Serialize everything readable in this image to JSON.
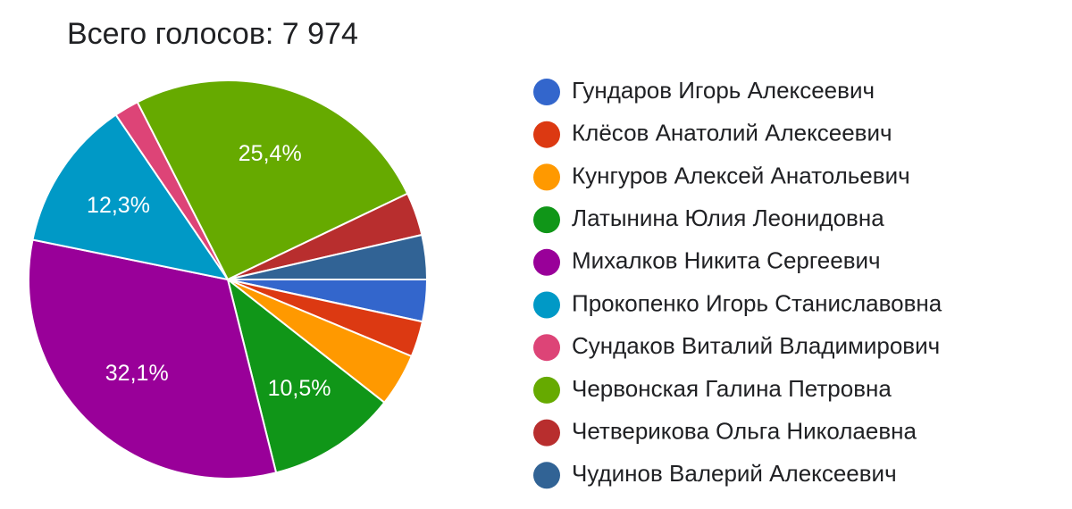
{
  "chart_data": {
    "type": "pie",
    "title": "Всего голосов: 7 974",
    "categories": [
      "Гундаров Игорь Алексеевич",
      "Клёсов Анатолий Алексеевич",
      "Кунгуров Алексей Анатольевич",
      "Латынина Юлия Леонидовна",
      "Михалков Никита Сергеевич",
      "Прокопенко Игорь Станиславовна",
      "Сундаков Виталий Владимирович",
      "Червонская Галина Петровна",
      "Четверикова Ольга Николаевна",
      "Чудинов Валерий Алексеевич"
    ],
    "values": [
      3.4,
      2.9,
      4.3,
      10.5,
      32.1,
      12.3,
      2.0,
      25.4,
      3.5,
      3.6
    ],
    "value_labels": [
      null,
      null,
      null,
      "10,5%",
      "32,1%",
      "12,3%",
      null,
      "25,4%",
      null,
      null
    ],
    "colors": [
      "#3366cc",
      "#dc3912",
      "#ff9900",
      "#109618",
      "#990099",
      "#0099c6",
      "#dd4477",
      "#66aa00",
      "#b82e2e",
      "#316395"
    ],
    "legend": "right"
  }
}
